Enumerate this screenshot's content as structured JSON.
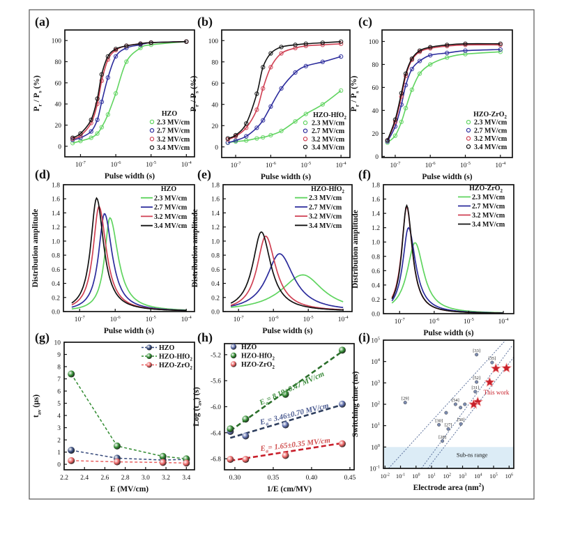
{
  "chart_data": [
    {
      "panel_label": "(a)",
      "type": "scatter_fit",
      "xscale": "log",
      "yscale": "linear",
      "xlim": [
        3.6e-08,
        0.00017
      ],
      "ylim": [
        -10,
        110
      ],
      "xticks": [
        1e-07,
        1e-06,
        1e-05,
        0.0001
      ],
      "xticklabels": [
        "10^{-7}",
        "10^{-6}",
        "10^{-5}",
        "10^{-4}"
      ],
      "yticks": [
        0,
        20,
        40,
        60,
        80,
        100
      ],
      "yticklabels": [
        "0",
        "20",
        "40",
        "60",
        "80",
        "100"
      ],
      "xlabel": "Pulse width (s)",
      "ylabel": "P_{r} / P_{s} (%)",
      "legend": {
        "title": "HZO",
        "placement": "bottom-right"
      },
      "x": [
        6e-08,
        1e-07,
        2e-07,
        3e-07,
        4e-07,
        6e-07,
        1e-06,
        2e-06,
        5e-06,
        1e-05,
        0.0001
      ],
      "series": [
        {
          "name": "2.3 MV/cm",
          "color": "#5fd45f",
          "values": [
            3,
            5,
            8,
            12,
            18,
            30,
            50,
            80,
            93,
            96,
            99
          ]
        },
        {
          "name": "2.7 MV/cm",
          "color": "#2b2b9c",
          "values": [
            6,
            8,
            14,
            25,
            42,
            65,
            85,
            93,
            96,
            98,
            99
          ]
        },
        {
          "name": "3.2 MV/cm",
          "color": "#cf3f52",
          "values": [
            7,
            10,
            22,
            40,
            62,
            82,
            91,
            95,
            97,
            98,
            99
          ]
        },
        {
          "name": "3.4 MV/cm",
          "color": "#111111",
          "values": [
            8,
            12,
            25,
            45,
            68,
            85,
            92,
            95,
            97,
            98,
            99
          ]
        }
      ]
    },
    {
      "panel_label": "(b)",
      "type": "scatter_fit",
      "xscale": "log",
      "yscale": "linear",
      "xlim": [
        4e-08,
        0.00018
      ],
      "ylim": [
        -10,
        110
      ],
      "xticks": [
        1e-07,
        1e-06,
        1e-05,
        0.0001
      ],
      "xticklabels": [
        "10^{-7}",
        "10^{-6}",
        "10^{-5}",
        "10^{-4}"
      ],
      "yticks": [
        0,
        20,
        40,
        60,
        80,
        100
      ],
      "yticklabels": [
        "0",
        "20",
        "40",
        "60",
        "80",
        "100"
      ],
      "xlabel": "Pulse width (s)",
      "ylabel": "P_{r} / P_{s} (%)",
      "legend": {
        "title": "HZO-HfO_{2}",
        "placement": "bottom-right"
      },
      "x": [
        6e-08,
        1e-07,
        2e-07,
        4e-07,
        6e-07,
        1e-06,
        2e-06,
        5e-06,
        1e-05,
        3e-05,
        0.0001
      ],
      "series": [
        {
          "name": "2.3 MV/cm",
          "color": "#5fd45f",
          "values": [
            4,
            5,
            6,
            8,
            9,
            11,
            15,
            24,
            31,
            40,
            53
          ]
        },
        {
          "name": "2.7 MV/cm",
          "color": "#2b2b9c",
          "values": [
            4,
            6,
            10,
            18,
            25,
            38,
            55,
            70,
            76,
            80,
            85
          ]
        },
        {
          "name": "3.2 MV/cm",
          "color": "#cf3f52",
          "values": [
            7,
            10,
            18,
            35,
            55,
            75,
            88,
            93,
            95,
            96,
            97
          ]
        },
        {
          "name": "3.4 MV/cm",
          "color": "#111111",
          "values": [
            8,
            11,
            22,
            50,
            75,
            88,
            94,
            96,
            97,
            98,
            99
          ]
        }
      ]
    },
    {
      "panel_label": "(c)",
      "type": "scatter_fit",
      "xscale": "log",
      "yscale": "linear",
      "xlim": [
        4.2e-08,
        0.00022
      ],
      "ylim": [
        -1,
        110
      ],
      "xticks": [
        1e-07,
        1e-06,
        1e-05,
        0.0001
      ],
      "xticklabels": [
        "10^{-7}",
        "10^{-6}",
        "10^{-5}",
        "10^{-4}"
      ],
      "yticks": [
        0,
        20,
        40,
        60,
        80,
        100
      ],
      "yticklabels": [
        "0",
        "20",
        "40",
        "60",
        "80",
        "100"
      ],
      "xlabel": "Pulse width (s)",
      "ylabel": "P_{r} / P_{s} (%)",
      "legend": {
        "title": "HZO-ZrO_{2}",
        "placement": "bottom-right"
      },
      "x": [
        6e-08,
        1e-07,
        1.5e-07,
        2e-07,
        3e-07,
        5e-07,
        1e-06,
        3e-06,
        1e-05,
        0.0001
      ],
      "series": [
        {
          "name": "2.3 MV/cm",
          "color": "#5fd45f",
          "values": [
            12,
            18,
            30,
            42,
            58,
            72,
            80,
            86,
            89,
            91
          ]
        },
        {
          "name": "2.7 MV/cm",
          "color": "#2b2b9c",
          "values": [
            13,
            26,
            45,
            62,
            76,
            83,
            88,
            90,
            92,
            93
          ]
        },
        {
          "name": "3.2 MV/cm",
          "color": "#cf3f52",
          "values": [
            14,
            30,
            52,
            70,
            84,
            91,
            94,
            96,
            97,
            97
          ]
        },
        {
          "name": "3.4 MV/cm",
          "color": "#111111",
          "values": [
            14,
            32,
            55,
            72,
            85,
            92,
            95,
            97,
            98,
            98
          ]
        }
      ]
    },
    {
      "panel_label": "(d)",
      "type": "peak",
      "xscale": "log",
      "yscale": "linear",
      "xlim": [
        3.5e-08,
        0.00017
      ],
      "ylim": [
        0,
        1.8
      ],
      "xticks": [
        1e-07,
        1e-06,
        1e-05,
        0.0001
      ],
      "xticklabels": [
        "10^{-7}",
        "10^{-6}",
        "10^{-5}",
        "10^{-4}"
      ],
      "yticks": [
        0,
        0.2,
        0.4,
        0.6,
        0.8,
        1.0,
        1.2,
        1.4,
        1.6,
        1.8
      ],
      "yticklabels": [
        "0.0",
        "0.2",
        "0.4",
        "0.6",
        "0.8",
        "1.0",
        "1.2",
        "1.4",
        "1.6",
        "1.8"
      ],
      "xlabel": "Pulse width (s)",
      "ylabel": "Distribution amplitude",
      "legend": {
        "title": "HZO",
        "placement": "top-right"
      },
      "curve_range": [
        6e-08,
        0.0001
      ],
      "series": [
        {
          "name": "2.3 MV/cm",
          "color": "#5fd45f",
          "peak_x": 7.1e-07,
          "peak_y": 1.33,
          "width_left_decades": 0.18,
          "width_right_decades": 0.28
        },
        {
          "name": "2.7 MV/cm",
          "color": "#2b2b9c",
          "peak_x": 5e-07,
          "peak_y": 1.39,
          "width_left_decades": 0.2,
          "width_right_decades": 0.26
        },
        {
          "name": "3.2 MV/cm",
          "color": "#cf3f52",
          "peak_x": 3.5e-07,
          "peak_y": 1.49,
          "width_left_decades": 0.2,
          "width_right_decades": 0.25
        },
        {
          "name": "3.4 MV/cm",
          "color": "#111111",
          "peak_x": 3e-07,
          "peak_y": 1.61,
          "width_left_decades": 0.2,
          "width_right_decades": 0.24
        }
      ]
    },
    {
      "panel_label": "(e)",
      "type": "peak",
      "xscale": "log",
      "yscale": "linear",
      "xlim": [
        3.6e-08,
        0.00018
      ],
      "ylim": [
        0,
        1.8
      ],
      "xticks": [
        1e-07,
        1e-06,
        1e-05,
        0.0001
      ],
      "xticklabels": [
        "10^{-7}",
        "10^{-6}",
        "10^{-5}",
        "10^{-4}"
      ],
      "yticks": [
        0,
        0.2,
        0.4,
        0.6,
        0.8,
        1.0,
        1.2,
        1.4,
        1.6,
        1.8
      ],
      "yticklabels": [
        "0.0",
        "0.2",
        "0.4",
        "0.6",
        "0.8",
        "1.0",
        "1.2",
        "1.4",
        "1.6",
        "1.8"
      ],
      "xlabel": "Pulse width (s)",
      "ylabel": "Distribution amplitude",
      "legend": {
        "title": "HZO-HfO_{2}",
        "placement": "top-right"
      },
      "curve_range": [
        6e-08,
        0.0001
      ],
      "series": [
        {
          "name": "2.3 MV/cm",
          "color": "#5fd45f",
          "peak_x": 7e-06,
          "peak_y": 0.52,
          "width_left_decades": 0.75,
          "width_right_decades": 0.7
        },
        {
          "name": "2.7 MV/cm",
          "color": "#2b2b9c",
          "peak_x": 1.5e-06,
          "peak_y": 0.82,
          "width_left_decades": 0.45,
          "width_right_decades": 0.5
        },
        {
          "name": "3.2 MV/cm",
          "color": "#cf3f52",
          "peak_x": 6e-07,
          "peak_y": 1.07,
          "width_left_decades": 0.3,
          "width_right_decades": 0.35
        },
        {
          "name": "3.4 MV/cm",
          "color": "#111111",
          "peak_x": 4.5e-07,
          "peak_y": 1.13,
          "width_left_decades": 0.3,
          "width_right_decades": 0.33
        }
      ]
    },
    {
      "panel_label": "(f)",
      "type": "peak",
      "xscale": "log",
      "yscale": "linear",
      "xlim": [
        3.4e-08,
        0.0002
      ],
      "ylim": [
        0,
        1.8
      ],
      "xticks": [
        1e-07,
        1e-06,
        1e-05,
        0.0001
      ],
      "xticklabels": [
        "10^{-7}",
        "10^{-6}",
        "10^{-5}",
        "10^{-4}"
      ],
      "yticks": [
        0,
        0.2,
        0.4,
        0.6,
        0.8,
        1.0,
        1.2,
        1.4,
        1.6,
        1.8
      ],
      "yticklabels": [
        "0.0",
        "0.2",
        "0.4",
        "0.6",
        "0.8",
        "1.0",
        "1.2",
        "1.4",
        "1.6",
        "1.8"
      ],
      "xlabel": "Pulse width (s)",
      "ylabel": "Distribution amplitude",
      "legend": {
        "title": "HZO-ZrO_{2}",
        "placement": "top-right"
      },
      "curve_range": [
        6e-08,
        0.0001
      ],
      "series": [
        {
          "name": "2.3 MV/cm",
          "color": "#5fd45f",
          "peak_x": 2.8e-07,
          "peak_y": 0.99,
          "width_left_decades": 0.28,
          "width_right_decades": 0.3
        },
        {
          "name": "2.7 MV/cm",
          "color": "#2b2b9c",
          "peak_x": 1.8e-07,
          "peak_y": 1.2,
          "width_left_decades": 0.2,
          "width_right_decades": 0.25
        },
        {
          "name": "3.2 MV/cm",
          "color": "#cf3f52",
          "peak_x": 1.6e-07,
          "peak_y": 1.49,
          "width_left_decades": 0.18,
          "width_right_decades": 0.2
        },
        {
          "name": "3.4 MV/cm",
          "color": "#111111",
          "peak_x": 1.6e-07,
          "peak_y": 1.51,
          "width_left_decades": 0.17,
          "width_right_decades": 0.2
        }
      ]
    },
    {
      "panel_label": "(g)",
      "type": "line_markers",
      "xscale": "linear",
      "yscale": "linear",
      "xlim": [
        2.2,
        3.48
      ],
      "ylim": [
        -0.45,
        10
      ],
      "xticks": [
        2.2,
        2.4,
        2.6,
        2.8,
        3.0,
        3.2,
        3.4
      ],
      "xticklabels": [
        "2.2",
        "2.4",
        "2.6",
        "2.8",
        "3.0",
        "3.2",
        "3.4"
      ],
      "yticks": [
        0,
        1,
        2,
        3,
        4,
        5,
        6,
        7,
        8,
        9,
        10
      ],
      "yticklabels": [
        "0",
        "1",
        "2",
        "3",
        "4",
        "5",
        "6",
        "7",
        "8",
        "9",
        "10"
      ],
      "xlabel": "E (MV/cm)",
      "ylabel": "t_{av} (μs)",
      "legend": {
        "title": "",
        "placement": "top-right"
      },
      "x": [
        2.27,
        2.72,
        3.17,
        3.4
      ],
      "series": [
        {
          "name": "HZO",
          "color": "#34487a",
          "values": [
            1.15,
            0.5,
            0.35,
            0.4
          ]
        },
        {
          "name": "HZO-HfO_{2}",
          "color": "#2f8a2f",
          "values": [
            7.4,
            1.5,
            0.65,
            0.45
          ]
        },
        {
          "name": "HZO-ZrO_{2}",
          "color": "#e86060",
          "values": [
            0.3,
            0.2,
            0.15,
            0.1
          ]
        }
      ]
    },
    {
      "panel_label": "(h)",
      "type": "linear_fit",
      "xscale": "linear",
      "yscale": "linear",
      "xlim": [
        0.2864,
        0.4555
      ],
      "ylim": [
        -6.97,
        -5.03
      ],
      "xticks": [
        0.3,
        0.35,
        0.4,
        0.45
      ],
      "xticklabels": [
        "0.30",
        "0.35",
        "0.40",
        "0.45"
      ],
      "yticks": [
        -6.8,
        -6.4,
        -6.0,
        -5.6,
        -5.2
      ],
      "yticklabels": [
        "-6.8",
        "-6.4",
        "-6.0",
        "-5.6",
        "-5.2"
      ],
      "xlabel": "1/E (cm/MV)",
      "ylabel": "Log (t_{av}) (s)",
      "legend": {
        "title": "",
        "placement": "top-left"
      },
      "x": [
        0.294,
        0.314,
        0.366,
        0.44
      ],
      "series": [
        {
          "name": "HZO",
          "color": "#5a6aa8",
          "line_color": "#2f3f5f",
          "values": [
            -6.38,
            -6.45,
            -6.28,
            -5.96
          ],
          "fit": [
            [
              0.294,
              -6.48
            ],
            [
              0.44,
              -5.97
            ]
          ],
          "annotation": "E_{a}= 3.46±0.70 MV/cm",
          "annotation_color": "#4a5a90"
        },
        {
          "name": "HZO-HfO_{2}",
          "color": "#2f8a2f",
          "line_color": "#2b6f2b",
          "values": [
            -6.34,
            -6.19,
            -5.81,
            -5.13
          ],
          "fit": [
            [
              0.294,
              -6.37
            ],
            [
              0.44,
              -5.15
            ]
          ],
          "annotation": "E_{a}= 8.19±0.47 MV/cm",
          "annotation_color": "#3a8a3a"
        },
        {
          "name": "HZO-ZrO_{2}",
          "color": "#e86060",
          "line_color": "#c81e2a",
          "values": [
            -6.81,
            -6.81,
            -6.75,
            -6.57
          ],
          "fit": [
            [
              0.294,
              -6.83
            ],
            [
              0.44,
              -6.56
            ]
          ],
          "annotation": "E_{a}= 1.65±0.35 MV/cm",
          "annotation_color": "#d05050"
        }
      ]
    },
    {
      "panel_label": "(i)",
      "type": "benchmark_loglog",
      "xscale": "log",
      "yscale": "log",
      "xlim": [
        0.0079,
        2000000.0
      ],
      "ylim": [
        0.1,
        100000.0
      ],
      "xticks": [
        0.01,
        0.1,
        1.0,
        10.0,
        100.0,
        1000.0,
        10000.0,
        100000.0,
        1000000.0
      ],
      "xticklabels": [
        "10^{-2}",
        "10^{-1}",
        "10^{0}",
        "10^{1}",
        "10^{2}",
        "10^{3}",
        "10^{4}",
        "10^{5}",
        "10^{6}"
      ],
      "yticks": [
        0.1,
        1.0,
        10.0,
        100.0,
        1000.0,
        10000.0,
        100000.0
      ],
      "yticklabels": [
        "10^{-1}",
        "10^{0}",
        "10^{1}",
        "10^{2}",
        "10^{3}",
        "10^{4}",
        "10^{5}"
      ],
      "xlabel": "Electrode area (nm^{2})",
      "ylabel": "Switching time (ns)",
      "band": {
        "ylim": [
          0.1,
          1
        ],
        "label": "Sub-ns range",
        "color": "#dcecf6"
      },
      "trend_lines": [
        [
          [
            0.017,
            0.1
          ],
          [
            600000,
            100000
          ]
        ],
        [
          [
            2.2,
            0.1
          ],
          [
            1600000.0,
            56000
          ]
        ],
        [
          [
            5.6,
            0.1
          ],
          [
            2000000.0,
            16000
          ]
        ]
      ],
      "reference_points": [
        {
          "x": 0.2,
          "y": 120,
          "label": "[29]"
        },
        {
          "x": 8000,
          "y": 21000,
          "label": "[33]"
        },
        {
          "x": 80000,
          "y": 9000,
          "label": "[35]"
        },
        {
          "x": 8000,
          "y": 1100,
          "label": "[52]"
        },
        {
          "x": 6600,
          "y": 390,
          "label": "[31]"
        },
        {
          "x": 350,
          "y": 100,
          "label": "[54]"
        },
        {
          "x": 87,
          "y": 40
        },
        {
          "x": 1400,
          "y": 100
        },
        {
          "x": 740,
          "y": 70
        },
        {
          "x": 780,
          "y": 12,
          "label": "[50]"
        },
        {
          "x": 30,
          "y": 11,
          "label": "[30]"
        },
        {
          "x": 120,
          "y": 7,
          "label": "[27]"
        },
        {
          "x": 50,
          "y": 1.9,
          "label": "[28]"
        }
      ],
      "this_work": {
        "label": "This work",
        "color": "#c8202a",
        "points": [
          {
            "x": 140000,
            "y": 4700
          },
          {
            "x": 680000,
            "y": 4900
          },
          {
            "x": 56000,
            "y": 1070
          },
          {
            "x": 9500,
            "y": 130
          },
          {
            "x": 5200,
            "y": 98
          }
        ]
      }
    }
  ]
}
